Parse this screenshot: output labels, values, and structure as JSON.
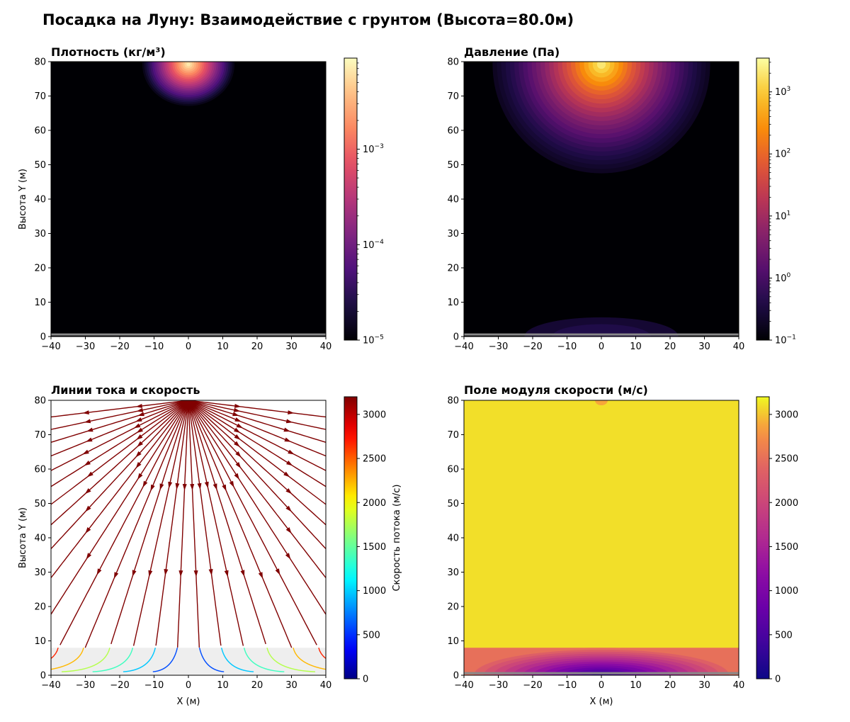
{
  "figure": {
    "title": "Посадка на Луну: Взаимодействие с грунтом (Высота=80.0м)"
  },
  "chart_data": [
    {
      "type": "heatmap",
      "title": "Плотность (кг/м³)",
      "xlabel": "",
      "ylabel": "Высота Y (м)",
      "xlim": [
        -40,
        40
      ],
      "ylim": [
        0,
        80
      ],
      "x_ticks": [
        -40,
        -30,
        -20,
        -10,
        0,
        10,
        20,
        30,
        40
      ],
      "y_ticks": [
        0,
        10,
        20,
        30,
        40,
        50,
        60,
        70,
        80
      ],
      "x_tick_labels": [
        "−40",
        "−30",
        "−20",
        "−10",
        "0",
        "10",
        "20",
        "30",
        "40"
      ],
      "y_tick_labels": [
        "0",
        "10",
        "20",
        "30",
        "40",
        "50",
        "60",
        "70",
        "80"
      ],
      "colormap": "magma",
      "colorbar": {
        "scale": "log",
        "range": [
          1e-05,
          0.009
        ],
        "ticks": [
          {
            "value": 1e-05,
            "base": "10",
            "exp": "−5"
          },
          {
            "value": 0.0001,
            "base": "10",
            "exp": "−4"
          },
          {
            "value": 0.001,
            "base": "10",
            "exp": "−3"
          }
        ]
      },
      "source": {
        "x": 0,
        "y": 80,
        "peak": 0.009,
        "radius": 14
      },
      "ground_line_y": 0.5
    },
    {
      "type": "heatmap",
      "title": "Давление (Па)",
      "xlabel": "",
      "ylabel": "",
      "xlim": [
        -40,
        40
      ],
      "ylim": [
        0,
        80
      ],
      "x_ticks": [
        -40,
        -30,
        -20,
        -10,
        0,
        10,
        20,
        30,
        40
      ],
      "y_ticks": [
        0,
        10,
        20,
        30,
        40,
        50,
        60,
        70,
        80
      ],
      "x_tick_labels": [
        "−40",
        "−30",
        "−20",
        "−10",
        "0",
        "10",
        "20",
        "30",
        "40"
      ],
      "y_tick_labels": [
        "0",
        "10",
        "20",
        "30",
        "40",
        "50",
        "60",
        "70",
        "80"
      ],
      "colormap": "inferno",
      "colorbar": {
        "scale": "log",
        "range": [
          0.1,
          3500
        ],
        "ticks": [
          {
            "value": 0.1,
            "base": "10",
            "exp": "−1"
          },
          {
            "value": 1,
            "base": "10",
            "exp": "0"
          },
          {
            "value": 10,
            "base": "10",
            "exp": "1"
          },
          {
            "value": 100,
            "base": "10",
            "exp": "2"
          },
          {
            "value": 1000,
            "base": "10",
            "exp": "3"
          }
        ]
      },
      "source": {
        "x": 0,
        "y": 80,
        "peak": 3500,
        "radius": 40
      },
      "ground_glow": {
        "x": 0,
        "y": 0,
        "peak": 0.15
      },
      "ground_line_y": 0.5
    },
    {
      "type": "streamplot",
      "title": "Линии тока и скорость",
      "xlabel": "X (м)",
      "ylabel": "Высота Y (м)",
      "xlim": [
        -40,
        40
      ],
      "ylim": [
        0,
        80
      ],
      "x_ticks": [
        -40,
        -30,
        -20,
        -10,
        0,
        10,
        20,
        30,
        40
      ],
      "y_ticks": [
        0,
        10,
        20,
        30,
        40,
        50,
        60,
        70,
        80
      ],
      "x_tick_labels": [
        "−40",
        "−30",
        "−20",
        "−10",
        "0",
        "10",
        "20",
        "30",
        "40"
      ],
      "y_tick_labels": [
        "0",
        "10",
        "20",
        "30",
        "40",
        "50",
        "60",
        "70",
        "80"
      ],
      "colormap": "jet",
      "line_color": "#800000",
      "source": {
        "x": 0,
        "y": 80
      },
      "boundary_layer_height": 8,
      "colorbar": {
        "scale": "linear",
        "range": [
          0,
          3200
        ],
        "label": "Скорость потока (м/с)",
        "ticks": [
          {
            "value": 0,
            "label": "0"
          },
          {
            "value": 500,
            "label": "500"
          },
          {
            "value": 1000,
            "label": "1000"
          },
          {
            "value": 1500,
            "label": "1500"
          },
          {
            "value": 2000,
            "label": "2000"
          },
          {
            "value": 2500,
            "label": "2500"
          },
          {
            "value": 3000,
            "label": "3000"
          }
        ]
      }
    },
    {
      "type": "heatmap",
      "title": "Поле модуля скорости (м/с)",
      "xlabel": "X (м)",
      "ylabel": "",
      "xlim": [
        -40,
        40
      ],
      "ylim": [
        0,
        80
      ],
      "x_ticks": [
        -40,
        -30,
        -20,
        -10,
        0,
        10,
        20,
        30,
        40
      ],
      "y_ticks": [
        0,
        10,
        20,
        30,
        40,
        50,
        60,
        70,
        80
      ],
      "x_tick_labels": [
        "−40",
        "−30",
        "−20",
        "−10",
        "0",
        "10",
        "20",
        "30",
        "40"
      ],
      "y_tick_labels": [
        "0",
        "10",
        "20",
        "30",
        "40",
        "50",
        "60",
        "70",
        "80"
      ],
      "colormap": "plasma",
      "upper_value": 3100,
      "boundary_layer_height": 8,
      "ground_min": {
        "x": 0,
        "y": 0,
        "value": 150
      },
      "colorbar": {
        "scale": "linear",
        "range": [
          0,
          3200
        ],
        "ticks": [
          {
            "value": 0,
            "label": "0"
          },
          {
            "value": 500,
            "label": "500"
          },
          {
            "value": 1000,
            "label": "1000"
          },
          {
            "value": 1500,
            "label": "1500"
          },
          {
            "value": 2000,
            "label": "2000"
          },
          {
            "value": 2500,
            "label": "2500"
          },
          {
            "value": 3000,
            "label": "3000"
          }
        ]
      }
    }
  ]
}
